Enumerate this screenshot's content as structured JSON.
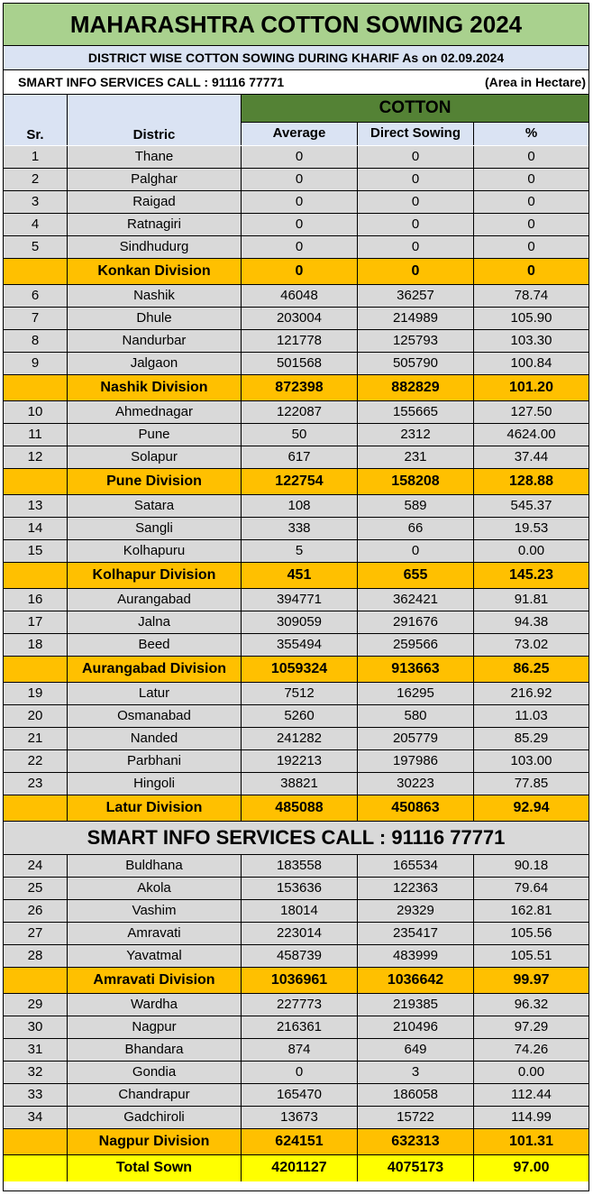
{
  "title": "MAHARASHTRA COTTON SOWING 2024",
  "subtitle": "DISTRICT WISE COTTON SOWING DURING KHARIF  As on 02.09.2024",
  "contact_line": "SMART INFO SERVICES CALL : 91116 77771",
  "unit_note": "(Area in Hectare)",
  "headers": {
    "crop": "COTTON",
    "sr": "Sr.",
    "district": "Distric",
    "average": "Average",
    "direct": "Direct Sowing",
    "percent": "%"
  },
  "banner": "SMART INFO SERVICES CALL : 91116 77771",
  "rows": [
    {
      "t": "d",
      "sr": "1",
      "name": "Thane",
      "avg": "0",
      "dir": "0",
      "pct": "0"
    },
    {
      "t": "d",
      "sr": "2",
      "name": "Palghar",
      "avg": "0",
      "dir": "0",
      "pct": "0"
    },
    {
      "t": "d",
      "sr": "3",
      "name": "Raigad",
      "avg": "0",
      "dir": "0",
      "pct": "0"
    },
    {
      "t": "d",
      "sr": "4",
      "name": "Ratnagiri",
      "avg": "0",
      "dir": "0",
      "pct": "0"
    },
    {
      "t": "d",
      "sr": "5",
      "name": "Sindhudurg",
      "avg": "0",
      "dir": "0",
      "pct": "0"
    },
    {
      "t": "v",
      "sr": "",
      "name": "Konkan Division",
      "avg": "0",
      "dir": "0",
      "pct": "0"
    },
    {
      "t": "d",
      "sr": "6",
      "name": "Nashik",
      "avg": "46048",
      "dir": "36257",
      "pct": "78.74"
    },
    {
      "t": "d",
      "sr": "7",
      "name": "Dhule",
      "avg": "203004",
      "dir": "214989",
      "pct": "105.90"
    },
    {
      "t": "d",
      "sr": "8",
      "name": "Nandurbar",
      "avg": "121778",
      "dir": "125793",
      "pct": "103.30"
    },
    {
      "t": "d",
      "sr": "9",
      "name": "Jalgaon",
      "avg": "501568",
      "dir": "505790",
      "pct": "100.84"
    },
    {
      "t": "v",
      "sr": "",
      "name": "Nashik Division",
      "avg": "872398",
      "dir": "882829",
      "pct": "101.20"
    },
    {
      "t": "d",
      "sr": "10",
      "name": "Ahmednagar",
      "avg": "122087",
      "dir": "155665",
      "pct": "127.50"
    },
    {
      "t": "d",
      "sr": "11",
      "name": "Pune",
      "avg": "50",
      "dir": "2312",
      "pct": "4624.00"
    },
    {
      "t": "d",
      "sr": "12",
      "name": "Solapur",
      "avg": "617",
      "dir": "231",
      "pct": "37.44"
    },
    {
      "t": "v",
      "sr": "",
      "name": "Pune Division",
      "avg": "122754",
      "dir": "158208",
      "pct": "128.88"
    },
    {
      "t": "d",
      "sr": "13",
      "name": "Satara",
      "avg": "108",
      "dir": "589",
      "pct": "545.37"
    },
    {
      "t": "d",
      "sr": "14",
      "name": "Sangli",
      "avg": "338",
      "dir": "66",
      "pct": "19.53"
    },
    {
      "t": "d",
      "sr": "15",
      "name": "Kolhapuru",
      "avg": "5",
      "dir": "0",
      "pct": "0.00"
    },
    {
      "t": "v",
      "sr": "",
      "name": "Kolhapur Division",
      "avg": "451",
      "dir": "655",
      "pct": "145.23"
    },
    {
      "t": "d",
      "sr": "16",
      "name": "Aurangabad",
      "avg": "394771",
      "dir": "362421",
      "pct": "91.81"
    },
    {
      "t": "d",
      "sr": "17",
      "name": "Jalna",
      "avg": "309059",
      "dir": "291676",
      "pct": "94.38"
    },
    {
      "t": "d",
      "sr": "18",
      "name": "Beed",
      "avg": "355494",
      "dir": "259566",
      "pct": "73.02"
    },
    {
      "t": "v",
      "sr": "",
      "name": "Aurangabad Division",
      "avg": "1059324",
      "dir": "913663",
      "pct": "86.25"
    },
    {
      "t": "d",
      "sr": "19",
      "name": "Latur",
      "avg": "7512",
      "dir": "16295",
      "pct": "216.92"
    },
    {
      "t": "d",
      "sr": "20",
      "name": "Osmanabad",
      "avg": "5260",
      "dir": "580",
      "pct": "11.03"
    },
    {
      "t": "d",
      "sr": "21",
      "name": "Nanded",
      "avg": "241282",
      "dir": "205779",
      "pct": "85.29"
    },
    {
      "t": "d",
      "sr": "22",
      "name": "Parbhani",
      "avg": "192213",
      "dir": "197986",
      "pct": "103.00"
    },
    {
      "t": "d",
      "sr": "23",
      "name": "Hingoli",
      "avg": "38821",
      "dir": "30223",
      "pct": "77.85"
    },
    {
      "t": "v",
      "sr": "",
      "name": "Latur Division",
      "avg": "485088",
      "dir": "450863",
      "pct": "92.94"
    },
    {
      "t": "b"
    },
    {
      "t": "d",
      "sr": "24",
      "name": "Buldhana",
      "avg": "183558",
      "dir": "165534",
      "pct": "90.18"
    },
    {
      "t": "d",
      "sr": "25",
      "name": "Akola",
      "avg": "153636",
      "dir": "122363",
      "pct": "79.64"
    },
    {
      "t": "d",
      "sr": "26",
      "name": "Vashim",
      "avg": "18014",
      "dir": "29329",
      "pct": "162.81"
    },
    {
      "t": "d",
      "sr": "27",
      "name": "Amravati",
      "avg": "223014",
      "dir": "235417",
      "pct": "105.56"
    },
    {
      "t": "d",
      "sr": "28",
      "name": "Yavatmal",
      "avg": "458739",
      "dir": "483999",
      "pct": "105.51"
    },
    {
      "t": "v",
      "sr": "",
      "name": "Amravati Division",
      "avg": "1036961",
      "dir": "1036642",
      "pct": "99.97"
    },
    {
      "t": "d",
      "sr": "29",
      "name": "Wardha",
      "avg": "227773",
      "dir": "219385",
      "pct": "96.32"
    },
    {
      "t": "d",
      "sr": "30",
      "name": "Nagpur",
      "avg": "216361",
      "dir": "210496",
      "pct": "97.29"
    },
    {
      "t": "d",
      "sr": "31",
      "name": "Bhandara",
      "avg": "874",
      "dir": "649",
      "pct": "74.26"
    },
    {
      "t": "d",
      "sr": "32",
      "name": "Gondia",
      "avg": "0",
      "dir": "3",
      "pct": "0.00"
    },
    {
      "t": "d",
      "sr": "33",
      "name": "Chandrapur",
      "avg": "165470",
      "dir": "186058",
      "pct": "112.44"
    },
    {
      "t": "d",
      "sr": "34",
      "name": "Gadchiroli",
      "avg": "13673",
      "dir": "15722",
      "pct": "114.99"
    },
    {
      "t": "v",
      "sr": "",
      "name": "Nagpur Division",
      "avg": "624151",
      "dir": "632313",
      "pct": "101.31"
    },
    {
      "t": "t",
      "sr": "",
      "name": "Total Sown",
      "avg": "4201127",
      "dir": "4075173",
      "pct": "97.00"
    }
  ]
}
